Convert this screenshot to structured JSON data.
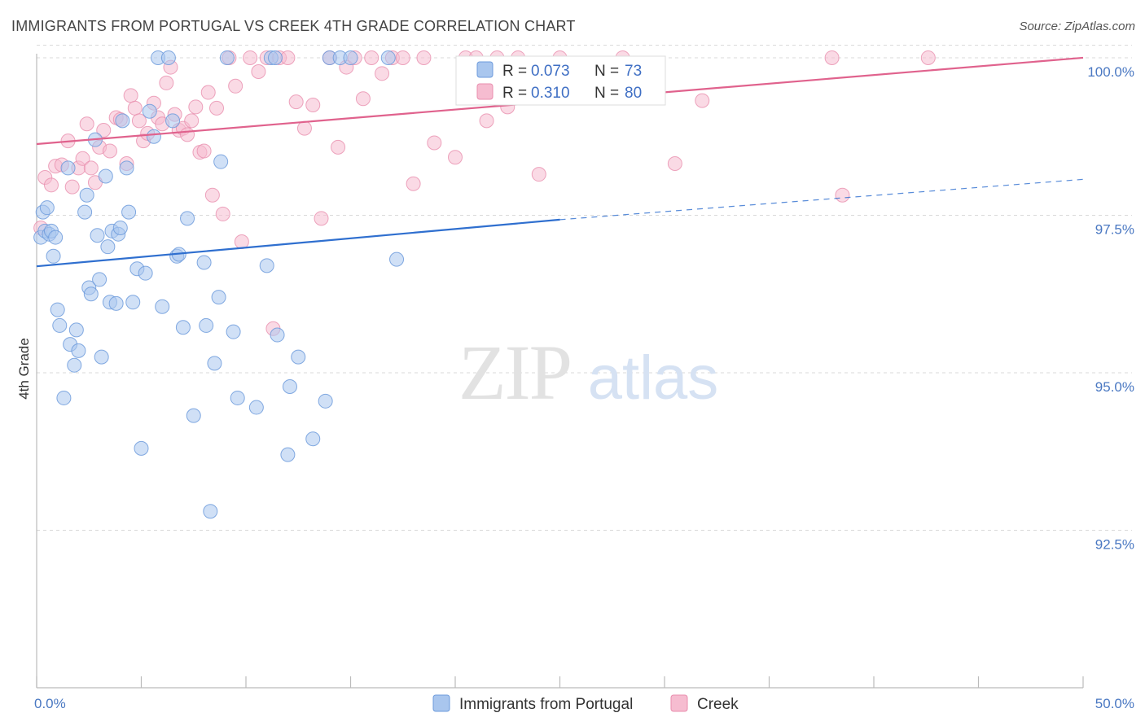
{
  "header": {
    "title": "IMMIGRANTS FROM PORTUGAL VS CREEK 4TH GRADE CORRELATION CHART",
    "source": "Source: ZipAtlas.com"
  },
  "watermark": {
    "zip": "ZIP",
    "atlas": "atlas"
  },
  "colors": {
    "blue": "#a9c6ee",
    "blue_edge": "#6d9bdc",
    "blue_line": "#2f6fcf",
    "pink": "#f6bcd0",
    "pink_edge": "#e98eae",
    "pink_line": "#e0628d",
    "grid": "#d9d9d9",
    "tick": "#4a78c2"
  },
  "legend": {
    "r_label": "R =",
    "n_label": "N =",
    "items": [
      {
        "r": "0.073",
        "n": "73"
      },
      {
        "r": "0.310",
        "n": "80"
      }
    ]
  },
  "chart_data": {
    "type": "scatter",
    "title": "IMMIGRANTS FROM PORTUGAL VS CREEK 4TH GRADE CORRELATION CHART",
    "ylabel": "4th Grade",
    "xlabel": "",
    "xlim": [
      0,
      50
    ],
    "ylim": [
      90.0,
      100.4
    ],
    "x_ticks": [
      0,
      5,
      10,
      15,
      20,
      25,
      30,
      35,
      40,
      45,
      50
    ],
    "x_tick_labels": [
      "0.0%",
      "",
      "",
      "",
      "",
      "",
      "",
      "",
      "",
      "",
      "50.0%"
    ],
    "y_ticks": [
      92.5,
      95.0,
      97.5,
      100.0
    ],
    "y_tick_labels": [
      "92.5%",
      "95.0%",
      "97.5%",
      "100.0%"
    ],
    "grid": true,
    "legend_position": "top-center",
    "series": [
      {
        "name": "Immigrants from Portugal",
        "r": 0.073,
        "n": 73,
        "trend": {
          "x0": 0,
          "y0": 96.69,
          "x1": 25,
          "y1": 97.43,
          "dashed_to_x": 50,
          "dashed_to_y": 98.07
        },
        "points": [
          [
            0.2,
            97.15
          ],
          [
            0.3,
            97.55
          ],
          [
            0.4,
            97.25
          ],
          [
            0.5,
            97.62
          ],
          [
            0.6,
            97.2
          ],
          [
            0.7,
            97.25
          ],
          [
            0.8,
            96.85
          ],
          [
            0.9,
            97.15
          ],
          [
            1.0,
            96.0
          ],
          [
            1.1,
            95.75
          ],
          [
            1.3,
            94.6
          ],
          [
            1.5,
            98.25
          ],
          [
            1.6,
            95.45
          ],
          [
            1.8,
            95.12
          ],
          [
            1.9,
            95.68
          ],
          [
            2.0,
            95.35
          ],
          [
            2.3,
            97.55
          ],
          [
            2.4,
            97.82
          ],
          [
            2.5,
            96.35
          ],
          [
            2.6,
            96.25
          ],
          [
            2.8,
            98.7
          ],
          [
            2.9,
            97.18
          ],
          [
            3.0,
            96.48
          ],
          [
            3.1,
            95.25
          ],
          [
            3.3,
            98.12
          ],
          [
            3.4,
            97.0
          ],
          [
            3.5,
            96.12
          ],
          [
            3.6,
            97.25
          ],
          [
            3.8,
            96.1
          ],
          [
            3.9,
            97.2
          ],
          [
            4.0,
            97.3
          ],
          [
            4.1,
            99.0
          ],
          [
            4.3,
            98.25
          ],
          [
            4.4,
            97.55
          ],
          [
            4.6,
            96.12
          ],
          [
            4.8,
            96.65
          ],
          [
            5.0,
            93.8
          ],
          [
            5.2,
            96.58
          ],
          [
            5.4,
            99.15
          ],
          [
            5.6,
            98.75
          ],
          [
            5.8,
            100.0
          ],
          [
            6.0,
            96.05
          ],
          [
            6.3,
            100.0
          ],
          [
            6.5,
            99.0
          ],
          [
            6.7,
            96.85
          ],
          [
            6.8,
            96.88
          ],
          [
            7.0,
            95.72
          ],
          [
            7.2,
            97.45
          ],
          [
            7.5,
            94.32
          ],
          [
            8.0,
            96.75
          ],
          [
            8.1,
            95.75
          ],
          [
            8.3,
            92.8
          ],
          [
            8.5,
            95.15
          ],
          [
            8.7,
            96.2
          ],
          [
            8.8,
            98.35
          ],
          [
            9.1,
            100.0
          ],
          [
            9.4,
            95.65
          ],
          [
            9.6,
            94.6
          ],
          [
            10.5,
            94.45
          ],
          [
            11.0,
            96.7
          ],
          [
            11.2,
            100.0
          ],
          [
            11.4,
            100.0
          ],
          [
            11.5,
            95.6
          ],
          [
            12.0,
            93.7
          ],
          [
            12.1,
            94.78
          ],
          [
            12.5,
            95.25
          ],
          [
            13.2,
            93.95
          ],
          [
            13.8,
            94.55
          ],
          [
            14.0,
            100.0
          ],
          [
            14.5,
            100.0
          ],
          [
            15.0,
            100.0
          ],
          [
            16.8,
            100.0
          ],
          [
            17.2,
            96.8
          ]
        ]
      },
      {
        "name": "Creek",
        "r": 0.31,
        "n": 80,
        "trend": {
          "x0": 0,
          "y0": 98.63,
          "x1": 50,
          "y1": 100.0
        },
        "points": [
          [
            0.2,
            97.3
          ],
          [
            0.4,
            98.1
          ],
          [
            0.7,
            97.98
          ],
          [
            0.9,
            98.28
          ],
          [
            1.2,
            98.3
          ],
          [
            1.5,
            98.68
          ],
          [
            1.7,
            97.95
          ],
          [
            2.0,
            98.25
          ],
          [
            2.2,
            98.4
          ],
          [
            2.4,
            98.95
          ],
          [
            2.6,
            98.25
          ],
          [
            2.8,
            98.02
          ],
          [
            3.0,
            98.58
          ],
          [
            3.2,
            98.85
          ],
          [
            3.5,
            98.52
          ],
          [
            3.8,
            99.05
          ],
          [
            4.0,
            99.02
          ],
          [
            4.3,
            98.32
          ],
          [
            4.5,
            99.4
          ],
          [
            4.7,
            99.2
          ],
          [
            4.9,
            99.0
          ],
          [
            5.1,
            98.68
          ],
          [
            5.3,
            98.8
          ],
          [
            5.6,
            99.28
          ],
          [
            5.8,
            99.05
          ],
          [
            6.0,
            98.95
          ],
          [
            6.2,
            99.6
          ],
          [
            6.4,
            99.85
          ],
          [
            6.6,
            99.1
          ],
          [
            6.8,
            98.85
          ],
          [
            7.0,
            98.88
          ],
          [
            7.2,
            98.78
          ],
          [
            7.4,
            99.0
          ],
          [
            7.6,
            99.22
          ],
          [
            7.8,
            98.5
          ],
          [
            8.0,
            98.52
          ],
          [
            8.2,
            99.45
          ],
          [
            8.4,
            97.82
          ],
          [
            8.6,
            99.2
          ],
          [
            8.9,
            97.52
          ],
          [
            9.2,
            100.0
          ],
          [
            9.5,
            99.55
          ],
          [
            9.8,
            97.08
          ],
          [
            10.2,
            100.0
          ],
          [
            10.6,
            99.78
          ],
          [
            11.0,
            100.0
          ],
          [
            11.3,
            95.7
          ],
          [
            11.6,
            100.0
          ],
          [
            12.0,
            100.0
          ],
          [
            12.4,
            99.3
          ],
          [
            12.8,
            98.88
          ],
          [
            13.2,
            99.25
          ],
          [
            13.6,
            97.45
          ],
          [
            14.0,
            100.0
          ],
          [
            14.4,
            98.58
          ],
          [
            14.8,
            99.85
          ],
          [
            15.2,
            100.0
          ],
          [
            15.6,
            99.35
          ],
          [
            16.0,
            100.0
          ],
          [
            16.5,
            99.75
          ],
          [
            17.0,
            100.0
          ],
          [
            17.5,
            100.0
          ],
          [
            18.0,
            98.0
          ],
          [
            18.5,
            100.0
          ],
          [
            19.0,
            98.65
          ],
          [
            20.0,
            98.42
          ],
          [
            20.5,
            100.0
          ],
          [
            21.0,
            100.0
          ],
          [
            21.5,
            99.0
          ],
          [
            22.0,
            100.0
          ],
          [
            22.5,
            99.22
          ],
          [
            23.0,
            100.0
          ],
          [
            24.0,
            98.15
          ],
          [
            25.0,
            100.0
          ],
          [
            28.0,
            100.0
          ],
          [
            30.5,
            98.32
          ],
          [
            31.8,
            99.32
          ],
          [
            38.0,
            100.0
          ],
          [
            38.5,
            97.82
          ],
          [
            42.6,
            100.0
          ]
        ]
      }
    ]
  }
}
